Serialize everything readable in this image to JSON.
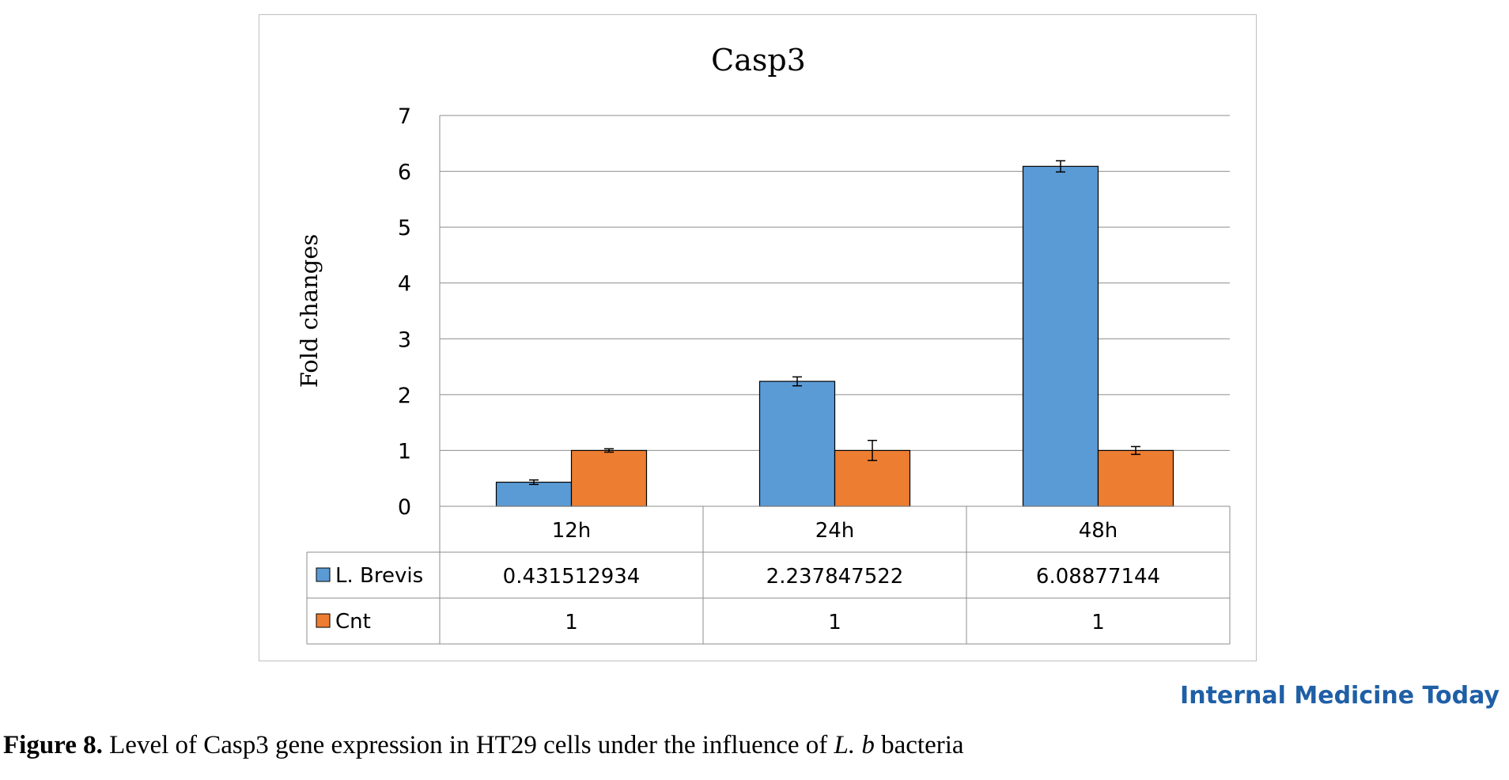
{
  "figure_label": "Figure 8.",
  "caption": {
    "before_italic": " Level of Casp3 gene expression in HT29 cells under the influence of ",
    "italic": "L. b",
    "after_italic": " bacteria"
  },
  "watermark": "Internal Medicine Today",
  "chart_data": {
    "type": "bar",
    "title": "Casp3",
    "xlabel": "",
    "ylabel": "Fold changes",
    "ylim": [
      0,
      7
    ],
    "yticks": [
      0,
      1,
      2,
      3,
      4,
      5,
      6,
      7
    ],
    "categories": [
      "12h",
      "24h",
      "48h"
    ],
    "grid": true,
    "legend": "data-table",
    "series": [
      {
        "name": "L. Brevis",
        "color": "#5b9bd5",
        "values": [
          0.431512934,
          2.237847522,
          6.08877144
        ],
        "labels": [
          "0.431512934",
          "2.237847522",
          "6.08877144"
        ],
        "errors": [
          0.04,
          0.08,
          0.1
        ]
      },
      {
        "name": "Cnt",
        "color": "#ed7d31",
        "values": [
          1,
          1,
          1
        ],
        "labels": [
          "1",
          "1",
          "1"
        ],
        "errors": [
          0.03,
          0.18,
          0.07
        ]
      }
    ]
  }
}
